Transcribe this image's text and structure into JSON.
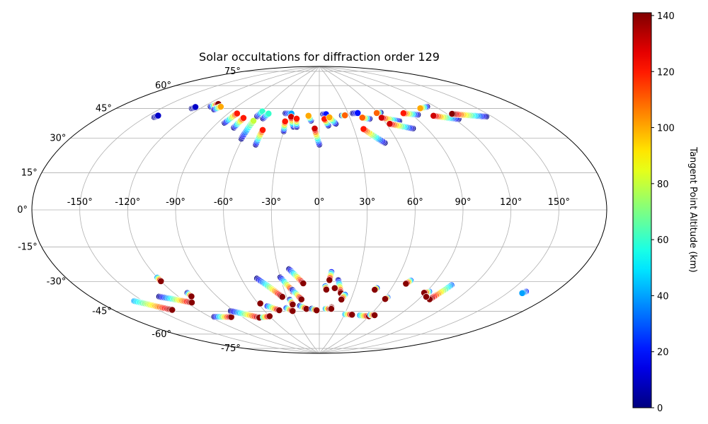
{
  "chart_data": {
    "type": "scatter",
    "projection": "aitoff",
    "title": "Solar occultations for diffraction order 129",
    "longitude_ticks": [
      "-150°",
      "-120°",
      "-90°",
      "-60°",
      "-30°",
      "0°",
      "30°",
      "60°",
      "90°",
      "120°",
      "150°"
    ],
    "longitude_values": [
      -150,
      -120,
      -90,
      -60,
      -30,
      0,
      30,
      60,
      90,
      120,
      150
    ],
    "latitude_ticks": [
      "75°",
      "60°",
      "45°",
      "30°",
      "15°",
      "0°",
      "-15°",
      "-30°",
      "-45°",
      "-60°",
      "-75°"
    ],
    "latitude_values": [
      75,
      60,
      45,
      30,
      15,
      0,
      -15,
      -30,
      -45,
      -60,
      -75
    ],
    "grid": true,
    "colorbar": {
      "label": "Tangent Point Altitude (km)",
      "range": [
        0,
        141
      ],
      "ticks": [
        "0",
        "20",
        "40",
        "60",
        "80",
        "100",
        "120",
        "140"
      ],
      "tick_values": [
        0,
        20,
        40,
        60,
        80,
        100,
        120,
        140
      ],
      "colormap": "jet"
    },
    "tracks": [
      {
        "lon0": -144,
        "lat0": 47,
        "lon1": -143,
        "lat1": 48,
        "alt0": 0,
        "alt1": 10
      },
      {
        "lon0": -127,
        "lat0": 55,
        "lon1": -126,
        "lat1": 56,
        "alt0": 0,
        "alt1": 10
      },
      {
        "lon0": -114,
        "lat0": 58,
        "lon1": -111,
        "lat1": 60,
        "alt0": 0,
        "alt1": 140
      },
      {
        "lon0": -107,
        "lat0": 57,
        "lon1": -105,
        "lat1": 59,
        "alt0": 0,
        "alt1": 100
      },
      {
        "lon0": -84,
        "lat0": 51,
        "lon1": -82,
        "lat1": 57,
        "alt0": 0,
        "alt1": 120
      },
      {
        "lon0": -73,
        "lat0": 49,
        "lon1": -72,
        "lat1": 55,
        "alt0": 0,
        "alt1": 120
      },
      {
        "lon0": -61,
        "lat0": 43,
        "lon1": -61,
        "lat1": 54,
        "alt0": 0,
        "alt1": 80
      },
      {
        "lon0": -61,
        "lat0": 57,
        "lon1": -60,
        "lat1": 60,
        "alt0": 0,
        "alt1": 60
      },
      {
        "lon0": -54,
        "lat0": 56,
        "lon1": -52,
        "lat1": 59,
        "alt0": 0,
        "alt1": 60
      },
      {
        "lon0": -48,
        "lat0": 40,
        "lon1": -48,
        "lat1": 49,
        "alt0": 0,
        "alt1": 120
      },
      {
        "lon0": -35,
        "lat0": 60,
        "lon1": -29,
        "lat1": 60,
        "alt0": 0,
        "alt1": 40
      },
      {
        "lon0": -30,
        "lat0": 49,
        "lon1": -32,
        "lat1": 55,
        "alt0": 0,
        "alt1": 120
      },
      {
        "lon0": -23,
        "lat0": 52,
        "lon1": -28,
        "lat1": 58,
        "alt0": 0,
        "alt1": 130
      },
      {
        "lon0": -20,
        "lat0": 52,
        "lon1": -22,
        "lat1": 57,
        "alt0": 0,
        "alt1": 120
      },
      {
        "lon0": -8,
        "lat0": 56,
        "lon1": -11,
        "lat1": 59,
        "alt0": 0,
        "alt1": 100
      },
      {
        "lon0": 0,
        "lat0": 41,
        "lon1": -4,
        "lat1": 51,
        "alt0": 0,
        "alt1": 130
      },
      {
        "lon0": 4,
        "lat0": 60,
        "lon1": 7,
        "lat1": 60,
        "alt0": 0,
        "alt1": 20
      },
      {
        "lon0": 8,
        "lat0": 53,
        "lon1": 5,
        "lat1": 57,
        "alt0": 0,
        "alt1": 120
      },
      {
        "lon0": 15,
        "lat0": 54,
        "lon1": 10,
        "lat1": 58,
        "alt0": 0,
        "alt1": 100
      },
      {
        "lon0": 23,
        "lat0": 59,
        "lon1": 26,
        "lat1": 59,
        "alt0": 0,
        "alt1": 110
      },
      {
        "lon0": 35,
        "lat0": 60,
        "lon1": 40,
        "lat1": 60,
        "alt0": 0,
        "alt1": 20
      },
      {
        "lon0": 48,
        "lat0": 56,
        "lon1": 42,
        "lat1": 57,
        "alt0": 0,
        "alt1": 110
      },
      {
        "lon0": 50,
        "lat0": 41,
        "lon1": 38,
        "lat1": 50,
        "alt0": 0,
        "alt1": 120
      },
      {
        "lon0": 63,
        "lat0": 59,
        "lon1": 59,
        "lat1": 59,
        "alt0": 0,
        "alt1": 110
      },
      {
        "lon0": 73,
        "lat0": 53,
        "lon1": 60,
        "lat1": 56,
        "alt0": 0,
        "alt1": 130
      },
      {
        "lon0": 79,
        "lat0": 48,
        "lon1": 63,
        "lat1": 52,
        "alt0": 0,
        "alt1": 130
      },
      {
        "lon0": 95,
        "lat0": 55,
        "lon1": 84,
        "lat1": 57,
        "alt0": 0,
        "alt1": 120
      },
      {
        "lon0": 113,
        "lat0": 58,
        "lon1": 105,
        "lat1": 58,
        "alt0": 0,
        "alt1": 100
      },
      {
        "lon0": 123,
        "lat0": 49,
        "lon1": 107,
        "lat1": 53,
        "alt0": 0,
        "alt1": 130
      },
      {
        "lon0": 146,
        "lat0": 47,
        "lon1": 124,
        "lat1": 52,
        "alt0": 0,
        "alt1": 140
      },
      {
        "lon0": -156,
        "lat0": -44,
        "lon1": -140,
        "lat1": -52,
        "alt0": 40,
        "alt1": 140
      },
      {
        "lon0": -134,
        "lat0": -45,
        "lon1": -116,
        "lat1": -51,
        "alt0": 0,
        "alt1": 140
      },
      {
        "lon0": -120,
        "lat0": -36,
        "lon1": -120,
        "lat1": -38,
        "alt0": 40,
        "alt1": 140
      },
      {
        "lon0": -110,
        "lat0": -46,
        "lon1": -110,
        "lat1": -48,
        "alt0": 0,
        "alt1": 140
      },
      {
        "lon0": -116,
        "lat0": -60,
        "lon1": -101,
        "lat1": -62,
        "alt0": 0,
        "alt1": 140
      },
      {
        "lon0": -93,
        "lat0": -59,
        "lon1": -73,
        "lat1": -65,
        "alt0": 0,
        "alt1": 140
      },
      {
        "lon0": -68,
        "lat0": -65,
        "lon1": -60,
        "lat1": -65,
        "alt0": 60,
        "alt1": 140
      },
      {
        "lon0": -58,
        "lat0": -57,
        "lon1": -58,
        "lat1": -57,
        "alt0": 140,
        "alt1": 140
      },
      {
        "lon0": -53,
        "lat0": -59,
        "lon1": -44,
        "lat1": -62,
        "alt0": 20,
        "alt1": 140
      },
      {
        "lon0": -48,
        "lat0": -42,
        "lon1": -34,
        "lat1": -54,
        "alt0": 0,
        "alt1": 140
      },
      {
        "lon0": -35,
        "lat0": -61,
        "lon1": -30,
        "lat1": -63,
        "alt0": 20,
        "alt1": 140
      },
      {
        "lon0": -30,
        "lat0": -42,
        "lon1": -23,
        "lat1": -51,
        "alt0": 0,
        "alt1": 140
      },
      {
        "lon0": -22,
        "lat0": -37,
        "lon1": -13,
        "lat1": -46,
        "alt0": 0,
        "alt1": 140
      },
      {
        "lon0": -23,
        "lat0": -50,
        "lon1": -17,
        "lat1": -56,
        "alt0": 0,
        "alt1": 140
      },
      {
        "lon0": -20,
        "lat0": -60,
        "lon1": -14,
        "lat1": -62,
        "alt0": 0,
        "alt1": 140
      },
      {
        "lon0": -28,
        "lat0": -56,
        "lon1": -27,
        "lat1": -59,
        "alt0": 0,
        "alt1": 140
      },
      {
        "lon0": -8,
        "lat0": -62,
        "lon1": -3,
        "lat1": -63,
        "alt0": 0,
        "alt1": 140
      },
      {
        "lon0": 9,
        "lat0": -39,
        "lon1": 8,
        "lat1": -44,
        "alt0": 20,
        "alt1": 140
      },
      {
        "lon0": 5,
        "lat0": -48,
        "lon1": 6,
        "lat1": -50,
        "alt0": 30,
        "alt1": 140
      },
      {
        "lon0": 15,
        "lat0": -44,
        "lon1": 19,
        "lat1": -52,
        "alt0": 0,
        "alt1": 140
      },
      {
        "lon0": 13,
        "lat0": -49,
        "lon1": 13,
        "lat1": -49,
        "alt0": 140,
        "alt1": 140
      },
      {
        "lon0": 23,
        "lat0": -53,
        "lon1": 21,
        "lat1": -56,
        "alt0": 30,
        "alt1": 140
      },
      {
        "lon0": 7,
        "lat0": -62,
        "lon1": 12,
        "lat1": -62,
        "alt0": 40,
        "alt1": 140
      },
      {
        "lon0": 13,
        "lat0": -61,
        "lon1": 13,
        "lat1": -62,
        "alt0": 140,
        "alt1": 140
      },
      {
        "lon0": 31,
        "lat0": -65,
        "lon1": 39,
        "lat1": -65,
        "alt0": 40,
        "alt1": 140
      },
      {
        "lon0": 48,
        "lat0": -48,
        "lon1": 47,
        "lat1": -49,
        "alt0": 30,
        "alt1": 140
      },
      {
        "lon0": 49,
        "lat0": -65,
        "lon1": 60,
        "lat1": -65,
        "alt0": 40,
        "alt1": 140
      },
      {
        "lon0": 62,
        "lat0": -53,
        "lon1": 61,
        "lat1": -54,
        "alt0": 30,
        "alt1": 140
      },
      {
        "lon0": 60,
        "lat0": -64,
        "lon1": 65,
        "lat1": -64,
        "alt0": 40,
        "alt1": 140
      },
      {
        "lon0": 71,
        "lat0": -42,
        "lon1": 69,
        "lat1": -44,
        "alt0": 30,
        "alt1": 140
      },
      {
        "lon0": 92,
        "lat0": -47,
        "lon1": 89,
        "lat1": -48,
        "alt0": 30,
        "alt1": 140
      },
      {
        "lon0": 104,
        "lat0": -42,
        "lon1": 99,
        "lat1": -51,
        "alt0": 30,
        "alt1": 140
      },
      {
        "lon0": 94,
        "lat0": -50,
        "lon1": 94,
        "lat1": -50,
        "alt0": 140,
        "alt1": 140
      },
      {
        "lon0": 161,
        "lat0": -38,
        "lon1": 160,
        "lat1": -39,
        "alt0": 20,
        "alt1": 40
      }
    ]
  }
}
